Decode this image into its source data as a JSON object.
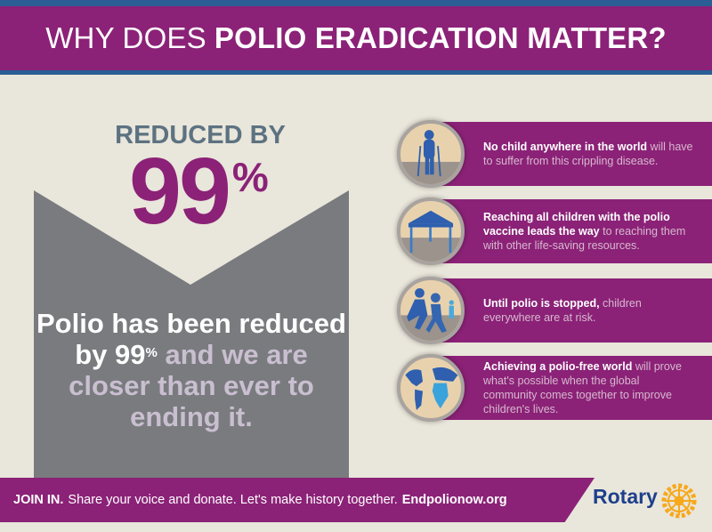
{
  "header": {
    "title_light": "WHY DOES",
    "title_bold": "POLIO ERADICATION MATTER?"
  },
  "stat": {
    "label": "REDUCED BY",
    "value": "99",
    "unit": "%"
  },
  "statement": {
    "part1": "Polio has been reduced by 99",
    "unit": "%",
    "part2": "and we are closer than ever to ending it."
  },
  "items": [
    {
      "icon": "child-with-crutches-icon",
      "bold": "No child anywhere in the world",
      "rest": "will have to suffer from this crippling disease."
    },
    {
      "icon": "vaccination-tent-icon",
      "bold": "Reaching all children with the polio vaccine leads the way",
      "rest": "to reaching them with other life-saving resources."
    },
    {
      "icon": "running-children-icon",
      "bold": "Until polio is stopped,",
      "rest": "children everywhere are at risk."
    },
    {
      "icon": "globe-icon",
      "bold": "Achieving a polio-free world",
      "rest": "will prove what's possible when the global community comes together to improve children's lives."
    }
  ],
  "banner": {
    "bold": "JOIN IN.",
    "text": "Share your voice and donate. Let's make history together.",
    "link": "Endpolionow.org"
  },
  "logo": {
    "text": "Rotary",
    "icon": "rotary-wheel-icon"
  },
  "colors": {
    "purple": "#8b2277",
    "blue": "#2a5e95",
    "gray": "#7a7b7f",
    "background": "#e9e6db",
    "rotary_gold": "#f7a81b"
  }
}
